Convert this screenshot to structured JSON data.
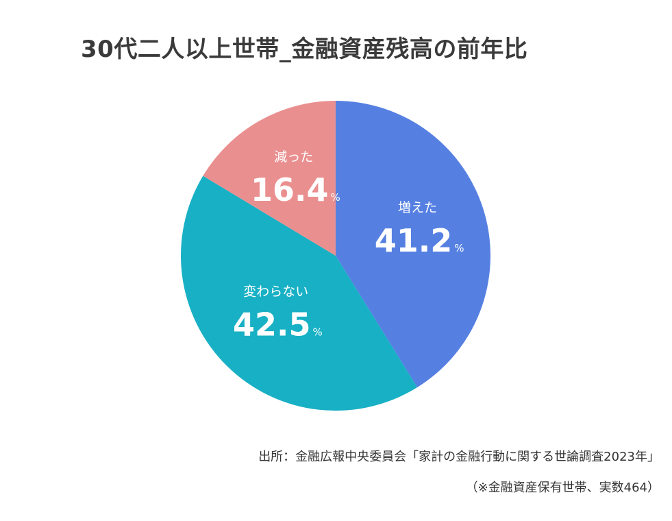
{
  "chart_data": {
    "type": "pie",
    "title": "30代二人以上世帯_金融資産残高の前年比",
    "unit": "%",
    "slices": [
      {
        "label": "増えた",
        "value": 41.2,
        "value_text": "41.2",
        "color": "#5580E2"
      },
      {
        "label": "変わらない",
        "value": 42.5,
        "value_text": "42.5",
        "color": "#18B0C4"
      },
      {
        "label": "減った",
        "value": 16.4,
        "value_text": "16.4",
        "color": "#EA8F8F"
      }
    ],
    "start": "top",
    "direction": "clockwise"
  },
  "footer": {
    "source": "出所：金融広報中央委員会「家計の金融行動に関する世論調査2023年」",
    "note": "（※金融資産保有世帯、実数464）"
  }
}
